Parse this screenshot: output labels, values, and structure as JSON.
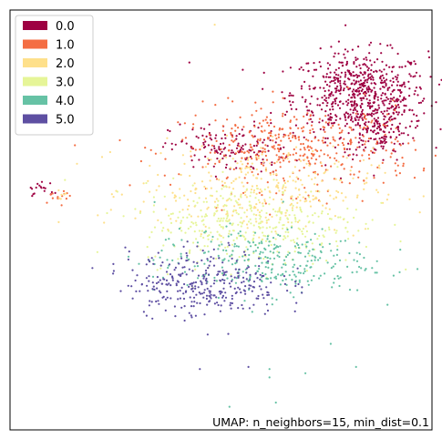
{
  "chart_data": {
    "type": "scatter",
    "title": "",
    "xlabel": "",
    "ylabel": "",
    "xlim": [
      0,
      100
    ],
    "ylim": [
      0,
      100
    ],
    "grid": false,
    "axes_ticks": false,
    "legend_position": "top-left",
    "annotation": "UMAP: n_neighbors=15, min_dist=0.1",
    "legend": [
      {
        "label": "0.0",
        "color": "#9e0142"
      },
      {
        "label": "1.0",
        "color": "#f46d43"
      },
      {
        "label": "2.0",
        "color": "#fee08b"
      },
      {
        "label": "3.0",
        "color": "#e6f598"
      },
      {
        "label": "4.0",
        "color": "#66c2a5"
      },
      {
        "label": "5.0",
        "color": "#5e4fa2"
      }
    ],
    "regions": [
      {
        "category": "0.0",
        "description": "main cluster, upper-right lobe",
        "center": [
          83,
          80
        ],
        "spread": [
          8,
          5
        ],
        "count": 620
      },
      {
        "category": "0.0",
        "description": "main cluster, right edge",
        "center": [
          87,
          72
        ],
        "spread": [
          4,
          4
        ],
        "count": 150
      },
      {
        "category": "0.0",
        "description": "main cluster, upper-left arm",
        "center": [
          52,
          67
        ],
        "spread": [
          7,
          3
        ],
        "count": 140
      },
      {
        "category": "1.0",
        "description": "main cluster, upper band",
        "center": [
          68,
          67
        ],
        "spread": [
          14,
          5
        ],
        "count": 420
      },
      {
        "category": "2.0",
        "description": "main cluster, middle band",
        "center": [
          58,
          57
        ],
        "spread": [
          14,
          5
        ],
        "count": 320
      },
      {
        "category": "3.0",
        "description": "main cluster, center",
        "center": [
          57,
          49
        ],
        "spread": [
          13,
          5
        ],
        "count": 380
      },
      {
        "category": "4.0",
        "description": "main cluster, lower band",
        "center": [
          60,
          40
        ],
        "spread": [
          13,
          4
        ],
        "count": 300
      },
      {
        "category": "5.0",
        "description": "main cluster, lower-left arc",
        "center": [
          46,
          35
        ],
        "spread": [
          9,
          4
        ],
        "count": 320
      },
      {
        "category": "0.0",
        "description": "small streak at left edge",
        "center": [
          8,
          57
        ],
        "spread": [
          2,
          1
        ],
        "count": 18
      },
      {
        "category": "1.0",
        "description": "small streak at left edge",
        "center": [
          11,
          56
        ],
        "spread": [
          2,
          0.8
        ],
        "count": 14
      },
      {
        "category": "2.0",
        "description": "small streak at left edge",
        "center": [
          13,
          56
        ],
        "spread": [
          1,
          0.5
        ],
        "count": 6
      }
    ],
    "outliers": [
      {
        "x": 48.5,
        "y": 96.5,
        "category": "2.0"
      },
      {
        "x": 42.5,
        "y": 87.5,
        "category": "0.0"
      },
      {
        "x": 24.5,
        "y": 39.5,
        "category": "5.0"
      },
      {
        "x": 76.0,
        "y": 20.5,
        "category": "4.0"
      },
      {
        "x": 45.0,
        "y": 14.5,
        "category": "5.0"
      },
      {
        "x": 56.5,
        "y": 15.0,
        "category": "5.0"
      },
      {
        "x": 61.5,
        "y": 14.5,
        "category": "4.0"
      },
      {
        "x": 70.0,
        "y": 13.5,
        "category": "4.0"
      },
      {
        "x": 82.0,
        "y": 15.0,
        "category": "4.0"
      },
      {
        "x": 61.5,
        "y": 12.5,
        "category": "4.0"
      },
      {
        "x": 52.0,
        "y": 5.5,
        "category": "4.0"
      },
      {
        "x": 63.0,
        "y": 6.5,
        "category": "4.0"
      }
    ]
  }
}
